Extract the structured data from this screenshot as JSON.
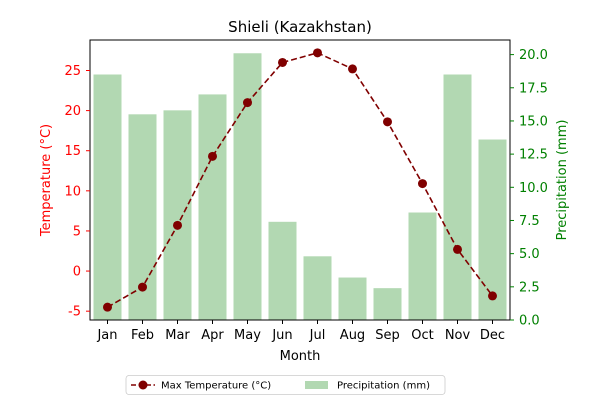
{
  "chart_data": {
    "type": "bar+line",
    "title": "Shieli (Kazakhstan)",
    "xlabel": "Month",
    "ylabel_left": "Temperature (°C)",
    "ylabel_right": "Precipitation (mm)",
    "categories": [
      "Jan",
      "Feb",
      "Mar",
      "Apr",
      "May",
      "Jun",
      "Jul",
      "Aug",
      "Sep",
      "Oct",
      "Nov",
      "Dec"
    ],
    "series": [
      {
        "name": "Max Temperature (°C)",
        "kind": "line",
        "axis": "left",
        "values": [
          -4.5,
          -2.0,
          5.7,
          14.3,
          21.0,
          26.0,
          27.2,
          25.2,
          18.6,
          10.9,
          2.7,
          -3.1
        ]
      },
      {
        "name": "Precipitation (mm)",
        "kind": "bar",
        "axis": "right",
        "values": [
          18.5,
          15.5,
          15.8,
          17.0,
          20.1,
          7.4,
          4.8,
          3.2,
          2.4,
          8.1,
          18.5,
          13.6
        ]
      }
    ],
    "ylim_left": [
      -6.1,
      28.8
    ],
    "yticks_left": [
      -5,
      0,
      5,
      10,
      15,
      20,
      25
    ],
    "ylim_right": [
      0,
      21.1
    ],
    "yticks_right": [
      "0.0",
      "2.5",
      "5.0",
      "7.5",
      "10.0",
      "12.5",
      "15.0",
      "17.5",
      "20.0"
    ],
    "legend_position": "bottom-center",
    "colors": {
      "temperature": "#800000",
      "temperature_axis": "#ff0000",
      "precipitation_bar": "#b2d8b2",
      "precipitation_axis": "#008000",
      "text": "#000000"
    },
    "grid": false
  }
}
